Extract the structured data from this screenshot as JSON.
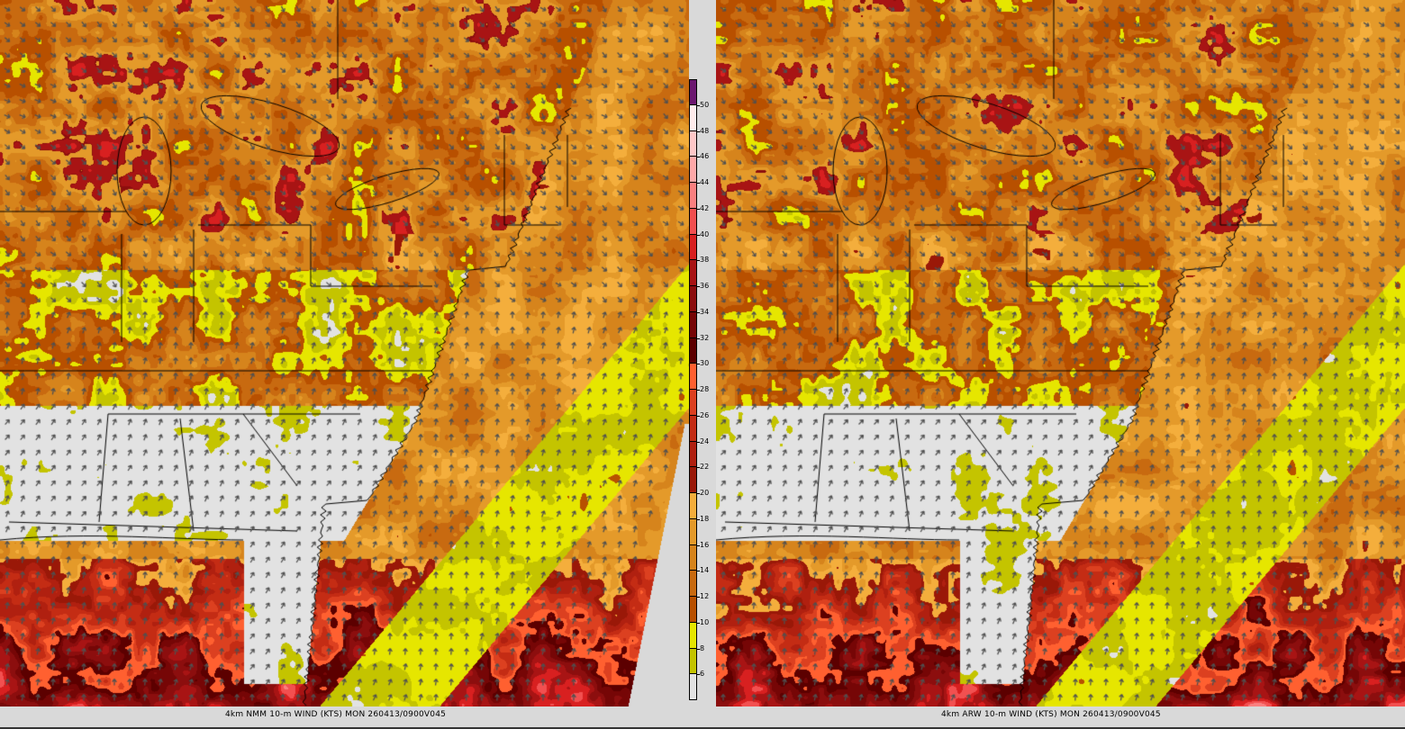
{
  "panels": [
    {
      "caption": "4km NMM 10-m WIND (KTS) MON 260413/0900V045",
      "seed": 3
    },
    {
      "caption": "4km ARW 10-m WIND (KTS) MON 260413/0900V045",
      "seed": 11
    }
  ],
  "colorbar": {
    "labels": [
      "6",
      "8",
      "10",
      "12",
      "14",
      "16",
      "18",
      "20",
      "22",
      "24",
      "26",
      "28",
      "30",
      "32",
      "34",
      "36",
      "38",
      "40",
      "42",
      "44",
      "46",
      "48",
      "50"
    ],
    "colors": [
      "#e2e2e2",
      "#c4c400",
      "#e6e600",
      "#b85000",
      "#c86a10",
      "#d6841c",
      "#e49a2a",
      "#f4ae3c",
      "#9a1808",
      "#b02010",
      "#c42c14",
      "#dc4020",
      "#ff6030",
      "#5c0000",
      "#760606",
      "#8c0e0e",
      "#a81414",
      "#d82020",
      "#f25050",
      "#fa8080",
      "#ffa8a8",
      "#ffc8c8",
      "#ffecec",
      "#6c1870"
    ]
  },
  "colors": {
    "coast": "#000000",
    "arrow": "#505050",
    "background": "#d9d9d9"
  }
}
